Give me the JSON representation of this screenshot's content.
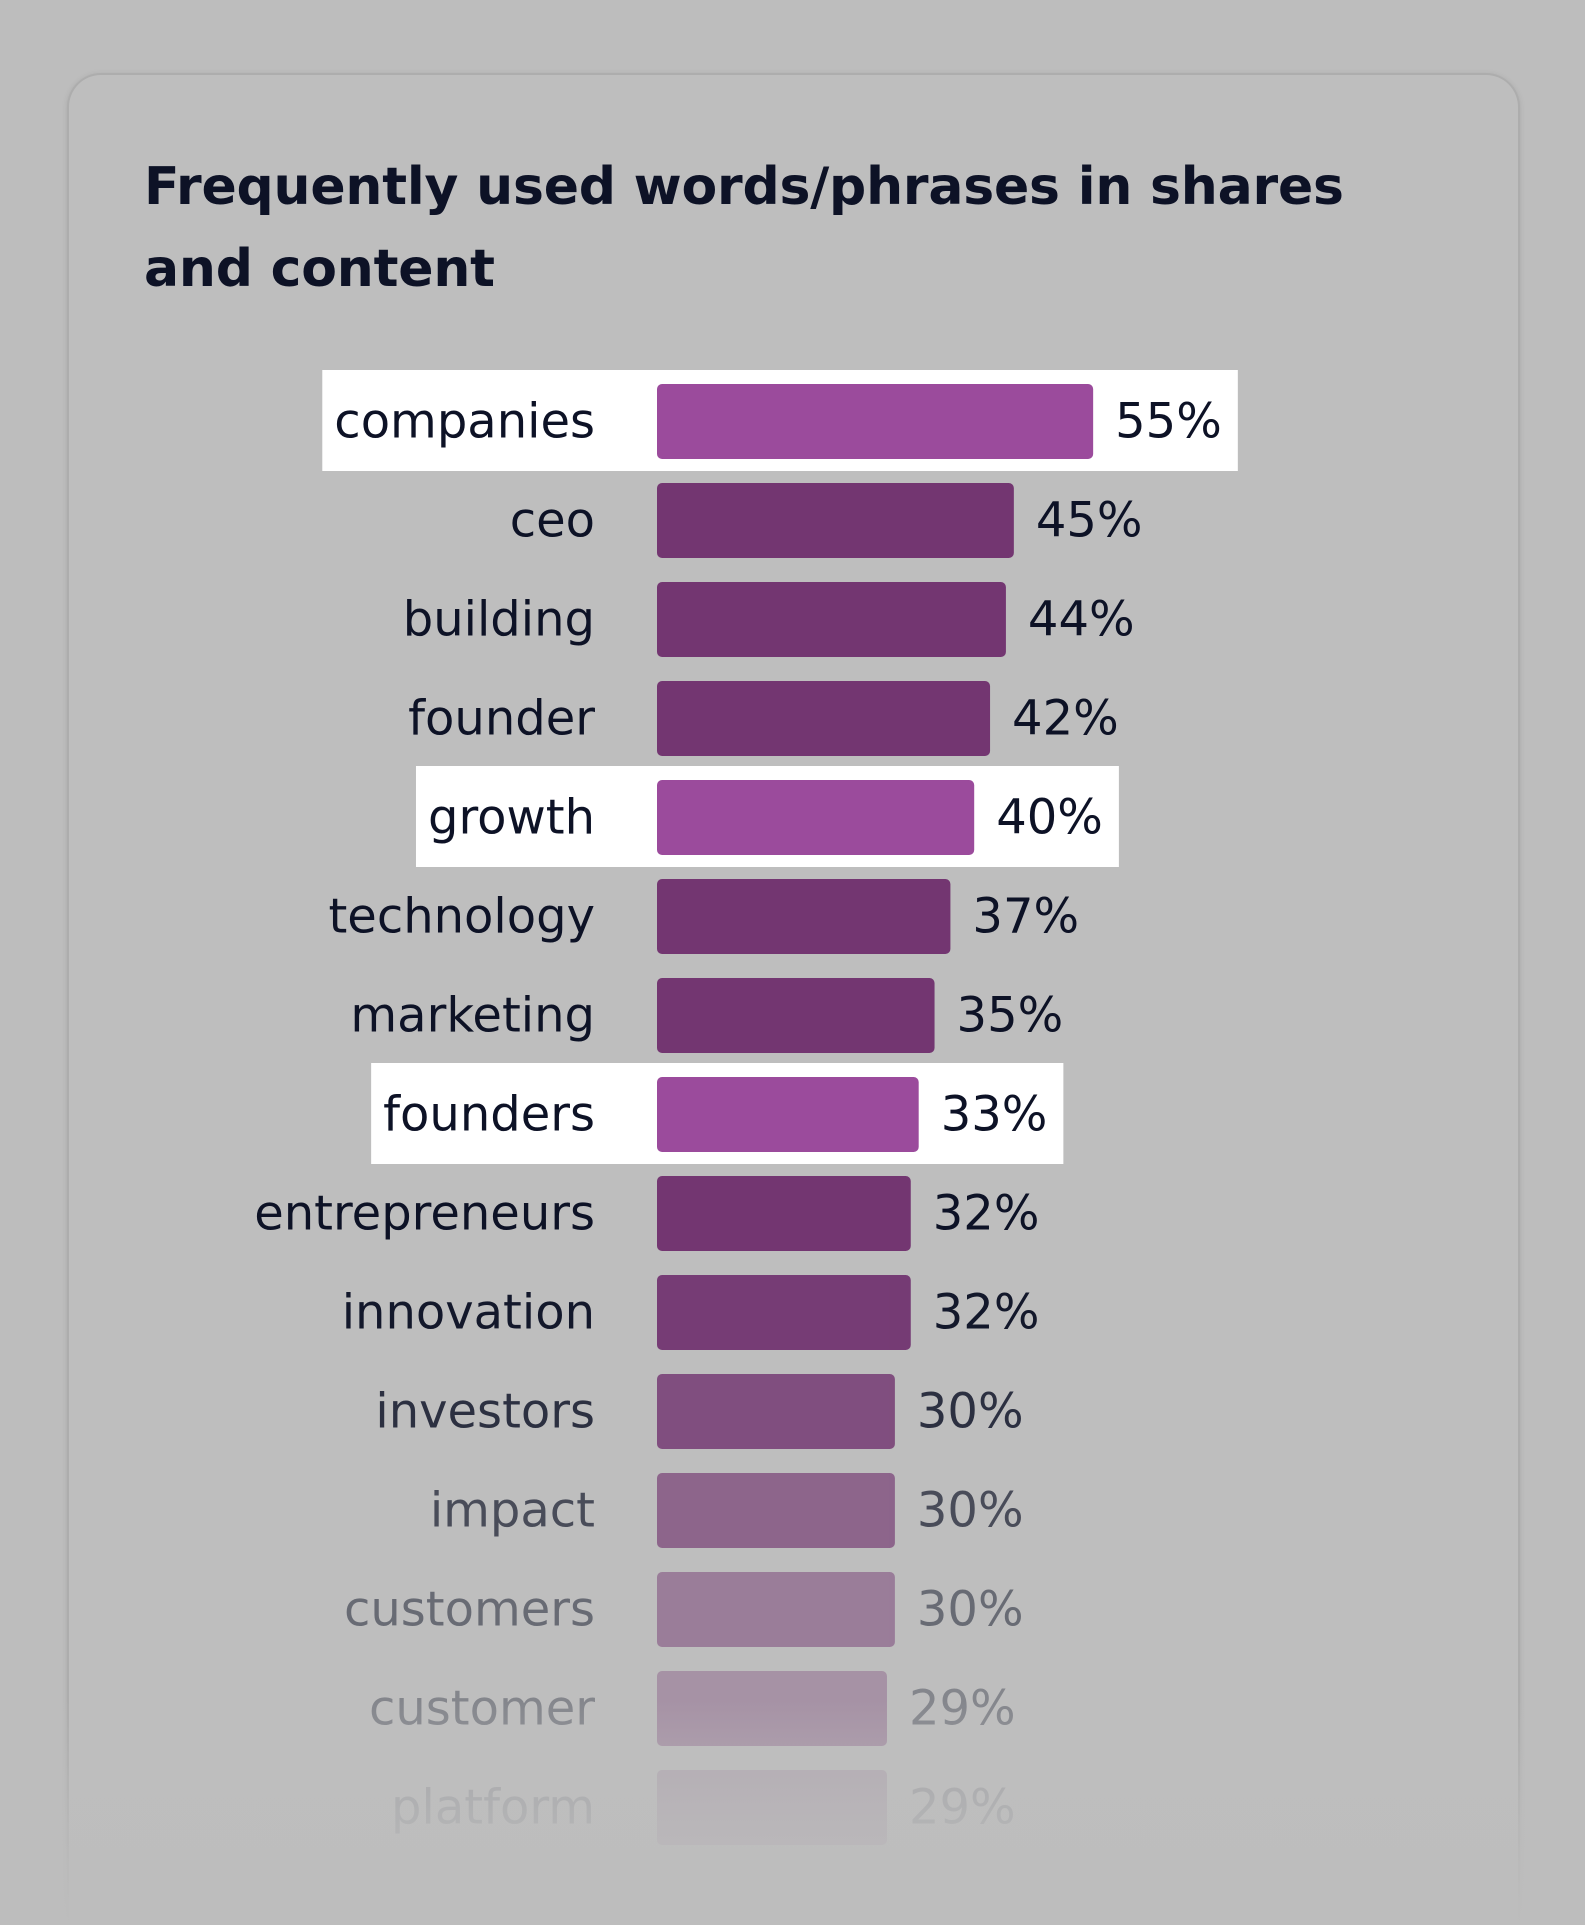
{
  "chart_data": {
    "type": "bar",
    "orientation": "horizontal",
    "title": "Frequently used words/phrases in shares and content",
    "categories": [
      "companies",
      "ceo",
      "building",
      "founder",
      "growth",
      "technology",
      "marketing",
      "founders",
      "entrepreneurs",
      "innovation",
      "investors",
      "impact",
      "customers",
      "customer",
      "platform"
    ],
    "values": [
      55,
      45,
      44,
      42,
      40,
      37,
      35,
      33,
      32,
      32,
      30,
      30,
      30,
      29,
      29
    ],
    "value_labels": [
      "55%",
      "45%",
      "44%",
      "42%",
      "40%",
      "37%",
      "35%",
      "33%",
      "32%",
      "32%",
      "30%",
      "30%",
      "30%",
      "29%",
      "29%"
    ],
    "highlighted": [
      "companies",
      "growth",
      "founders"
    ],
    "xlabel": "",
    "ylabel": "",
    "grid": false,
    "legend": "none"
  },
  "colors": {
    "page_background": "#bdbdbd",
    "bar": "#733671",
    "bar_highlight": "#9b4b9c",
    "highlight_box": "#ffffff",
    "text": "#0d1226"
  }
}
